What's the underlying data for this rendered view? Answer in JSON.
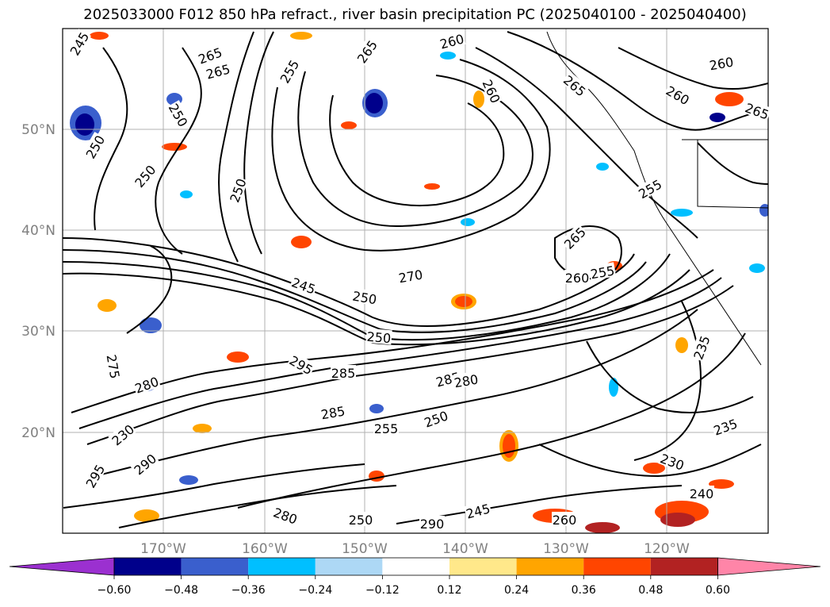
{
  "title": "2025033000 F012 850 hPa refract., river basin precipitation PC (2025040100 - 2025040400)",
  "latitude_labels": [
    "50°N",
    "40°N",
    "30°N",
    "20°N"
  ],
  "longitude_labels": [
    "170°W",
    "160°W",
    "150°W",
    "140°W",
    "130°W",
    "120°W"
  ],
  "colorbar": {
    "ticks": [
      "−0.60",
      "−0.48",
      "−0.36",
      "−0.24",
      "−0.12",
      "0.12",
      "0.24",
      "0.36",
      "0.48",
      "0.60"
    ],
    "colors": [
      "#9b30d0",
      "#00008b",
      "#3a5fcd",
      "#00bfff",
      "#add8f5",
      "#ffffff",
      "#ffe88a",
      "#ffa500",
      "#ff4500",
      "#b22222",
      "#ff85a8"
    ]
  },
  "contour_labels": [
    "245",
    "265",
    "250",
    "260",
    "255",
    "265",
    "260",
    "260",
    "265",
    "260",
    "265",
    "250",
    "250",
    "250",
    "265",
    "255",
    "270",
    "265",
    "260",
    "255",
    "245",
    "250",
    "250",
    "285",
    "280",
    "275",
    "280",
    "295",
    "285",
    "285",
    "255",
    "250",
    "235",
    "235",
    "230",
    "230",
    "240",
    "245",
    "260",
    "280",
    "290",
    "295",
    "290",
    "250"
  ]
}
